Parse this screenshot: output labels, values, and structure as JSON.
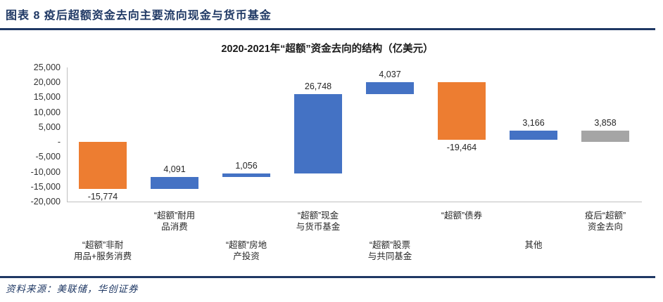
{
  "figure": {
    "header": "图表 8  疫后超额资金去向主要流向现金与货币基金",
    "source": "资料来源：美联储，华创证券"
  },
  "chart_data": {
    "type": "bar",
    "subtype": "waterfall",
    "title": "2020-2021年“超额”资金去向的结构（亿美元）",
    "categories": [
      "“超额”非耐\n用品+服务消费",
      "“超额”耐用\n品消费",
      "“超额”房地\n产投资",
      "“超额”现金\n与货币基金",
      "“超额”股票\n与共同基金",
      "“超额”债券",
      "其他",
      "疫后“超额”\n资金去向"
    ],
    "category_rows": [
      "lower",
      "upper",
      "lower",
      "upper",
      "lower",
      "upper",
      "lower",
      "upper"
    ],
    "values": [
      -15774,
      4091,
      1056,
      26748,
      4037,
      -19464,
      3166,
      3858
    ],
    "value_labels": [
      "-15,774",
      "4,091",
      "1,056",
      "26,748",
      "4,037",
      "-19,464",
      "3,166",
      "3,858"
    ],
    "bar_roles": [
      "change",
      "change",
      "change",
      "change",
      "change",
      "change",
      "change",
      "total"
    ],
    "colors": {
      "positive": "#4472C4",
      "negative": "#ED7D31",
      "total": "#A5A5A5",
      "axis_line": "#C0C0C0",
      "accent_navy": "#1F3864"
    },
    "y_ticks": [
      "25,000",
      "20,000",
      "15,000",
      "10,000",
      "5,000",
      "-",
      "-5,000",
      "-10,000",
      "-15,000",
      "-20,000"
    ],
    "y_tick_values": [
      25000,
      20000,
      15000,
      10000,
      5000,
      0,
      -5000,
      -10000,
      -15000,
      -20000
    ],
    "ylim": [
      -20000,
      25000
    ],
    "grid": "off",
    "legend": "none"
  }
}
